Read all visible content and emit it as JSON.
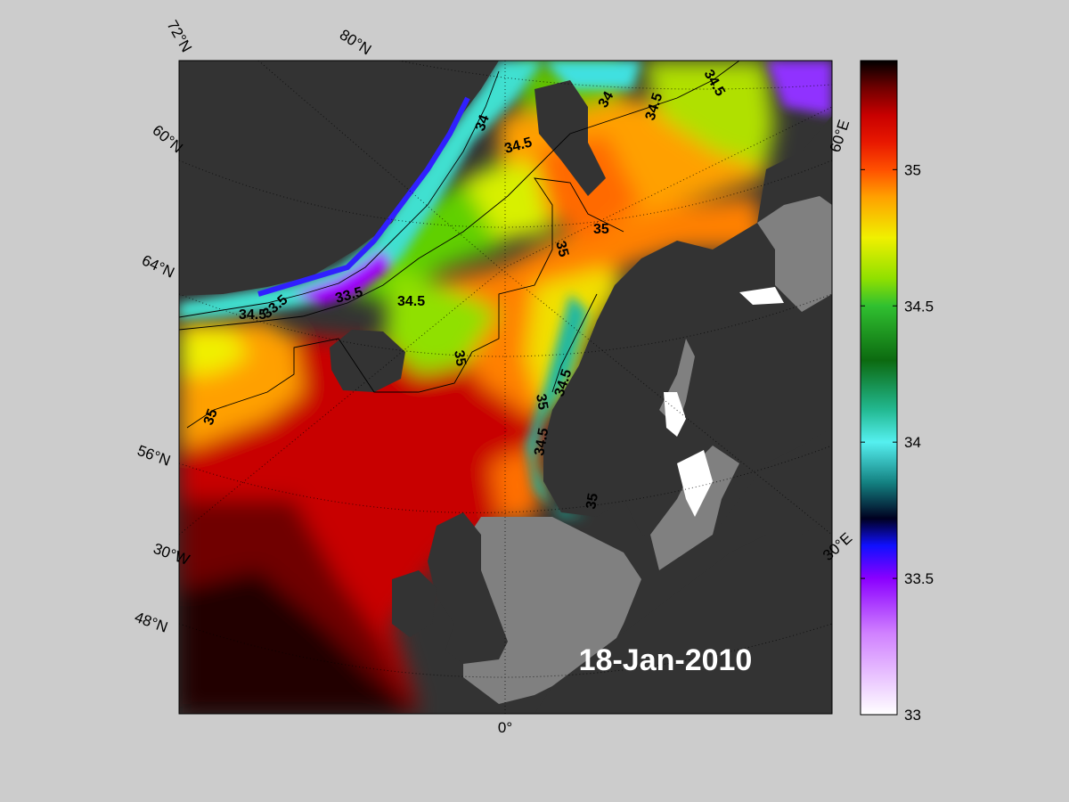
{
  "date_label": "18-Jan-2010",
  "colors": {
    "background": "#cccccc",
    "land": "#333333",
    "shelf": "#808080",
    "ice": "#ffffff"
  },
  "colorbar": {
    "min": 33,
    "max": 35.4,
    "ticks": [
      "33",
      "33.5",
      "34",
      "34.5",
      "35"
    ],
    "stops": [
      {
        "value": 33.0,
        "color": "#ffffff"
      },
      {
        "value": 33.3,
        "color": "#d080ff"
      },
      {
        "value": 33.5,
        "color": "#8a00ff"
      },
      {
        "value": 33.62,
        "color": "#1010ff"
      },
      {
        "value": 33.72,
        "color": "#000020"
      },
      {
        "value": 33.85,
        "color": "#138080"
      },
      {
        "value": 34.0,
        "color": "#55f0f0"
      },
      {
        "value": 34.12,
        "color": "#22b890"
      },
      {
        "value": 34.3,
        "color": "#0c6a10"
      },
      {
        "value": 34.5,
        "color": "#30c030"
      },
      {
        "value": 34.6,
        "color": "#90e000"
      },
      {
        "value": 34.75,
        "color": "#f0f000"
      },
      {
        "value": 34.9,
        "color": "#ffa000"
      },
      {
        "value": 35.0,
        "color": "#ff5000"
      },
      {
        "value": 35.1,
        "color": "#e81800"
      },
      {
        "value": 35.2,
        "color": "#c80000"
      },
      {
        "value": 35.3,
        "color": "#700000"
      },
      {
        "value": 35.4,
        "color": "#000000"
      }
    ]
  },
  "graticule_labels": {
    "lat_72": "72°N",
    "lat_80": "80°N",
    "lat_60": "60°N",
    "lat_64": "64°N",
    "lat_56": "56°N",
    "lat_48": "48°N",
    "lon_60e": "60°E",
    "lon_30w": "30°W",
    "lon_30e": "30°E",
    "lon_0": "0°"
  },
  "contour_labels": [
    {
      "id": "c1",
      "text": "34"
    },
    {
      "id": "c2",
      "text": "34.5"
    },
    {
      "id": "c3",
      "text": "34"
    },
    {
      "id": "c4",
      "text": "34.5"
    },
    {
      "id": "c5",
      "text": "34.5"
    },
    {
      "id": "c6",
      "text": "35"
    },
    {
      "id": "c7",
      "text": "35"
    },
    {
      "id": "c8",
      "text": "33.5"
    },
    {
      "id": "c9",
      "text": "34.5"
    },
    {
      "id": "c10",
      "text": "33.5"
    },
    {
      "id": "c11",
      "text": "34.5"
    },
    {
      "id": "c12",
      "text": "35"
    },
    {
      "id": "c13",
      "text": "35"
    },
    {
      "id": "c14",
      "text": "34.5"
    },
    {
      "id": "c15",
      "text": "35"
    },
    {
      "id": "c16",
      "text": "34.5"
    },
    {
      "id": "c17",
      "text": "35"
    }
  ]
}
